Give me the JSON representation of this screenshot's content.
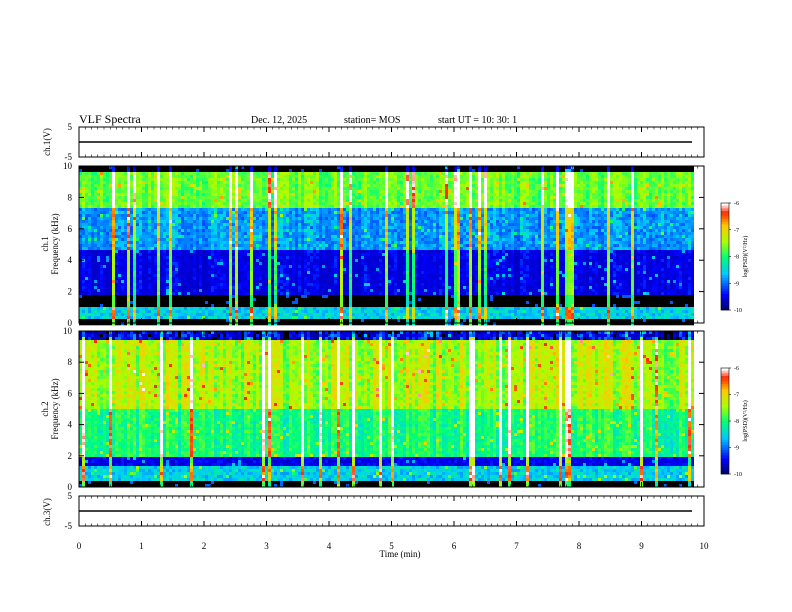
{
  "header": {
    "title": "VLF Spectra",
    "date": "Dec. 12, 2025",
    "station": "station= MOS",
    "start": "start  UT =  10: 30: 1"
  },
  "chart_data": [
    {
      "type": "line",
      "id": "ch1-waveform",
      "ylabel": "ch.1(V)",
      "ylim": [
        -5,
        5
      ],
      "y_ticks": [
        "5",
        "-5"
      ],
      "x": [
        0,
        10
      ],
      "series": [
        {
          "values": [
            0,
            0
          ]
        }
      ]
    },
    {
      "type": "heatmap",
      "id": "ch1-spectrogram",
      "ylabel_line1": "ch.1",
      "ylabel_line2": "Frequency (kHz)",
      "ylim": [
        0,
        10
      ],
      "y_ticks": [
        "0",
        "2",
        "4",
        "6",
        "8",
        "10"
      ],
      "xlim": [
        0,
        9.85
      ],
      "colorbar": {
        "label": "log(PSD)(V²/Hz)",
        "range": [
          -10,
          -6
        ],
        "ticks": [
          "-6",
          "-7",
          "-8",
          "-9",
          "-10"
        ]
      }
    },
    {
      "type": "heatmap",
      "id": "ch2-spectrogram",
      "ylabel_line1": "ch.2",
      "ylabel_line2": "Frequency (kHz)",
      "ylim": [
        0,
        10
      ],
      "y_ticks": [
        "0",
        "2",
        "4",
        "6",
        "8",
        "10"
      ],
      "xlim": [
        0,
        9.85
      ],
      "colorbar": {
        "label": "log(PSD)(V²/Hz)",
        "range": [
          -10,
          -6
        ],
        "ticks": [
          "-6",
          "-7",
          "-8",
          "-9",
          "-10"
        ]
      }
    },
    {
      "type": "line",
      "id": "ch3-waveform",
      "ylabel": "ch.3(V)",
      "ylim": [
        -5,
        5
      ],
      "y_ticks": [
        "5",
        "-5"
      ],
      "x": [
        0,
        10
      ],
      "series": [
        {
          "values": [
            0,
            0
          ]
        }
      ]
    }
  ],
  "xaxis": {
    "label": "Time  (min)",
    "ticks": [
      "0",
      "1",
      "2",
      "3",
      "4",
      "5",
      "6",
      "7",
      "8",
      "9",
      "10"
    ]
  }
}
